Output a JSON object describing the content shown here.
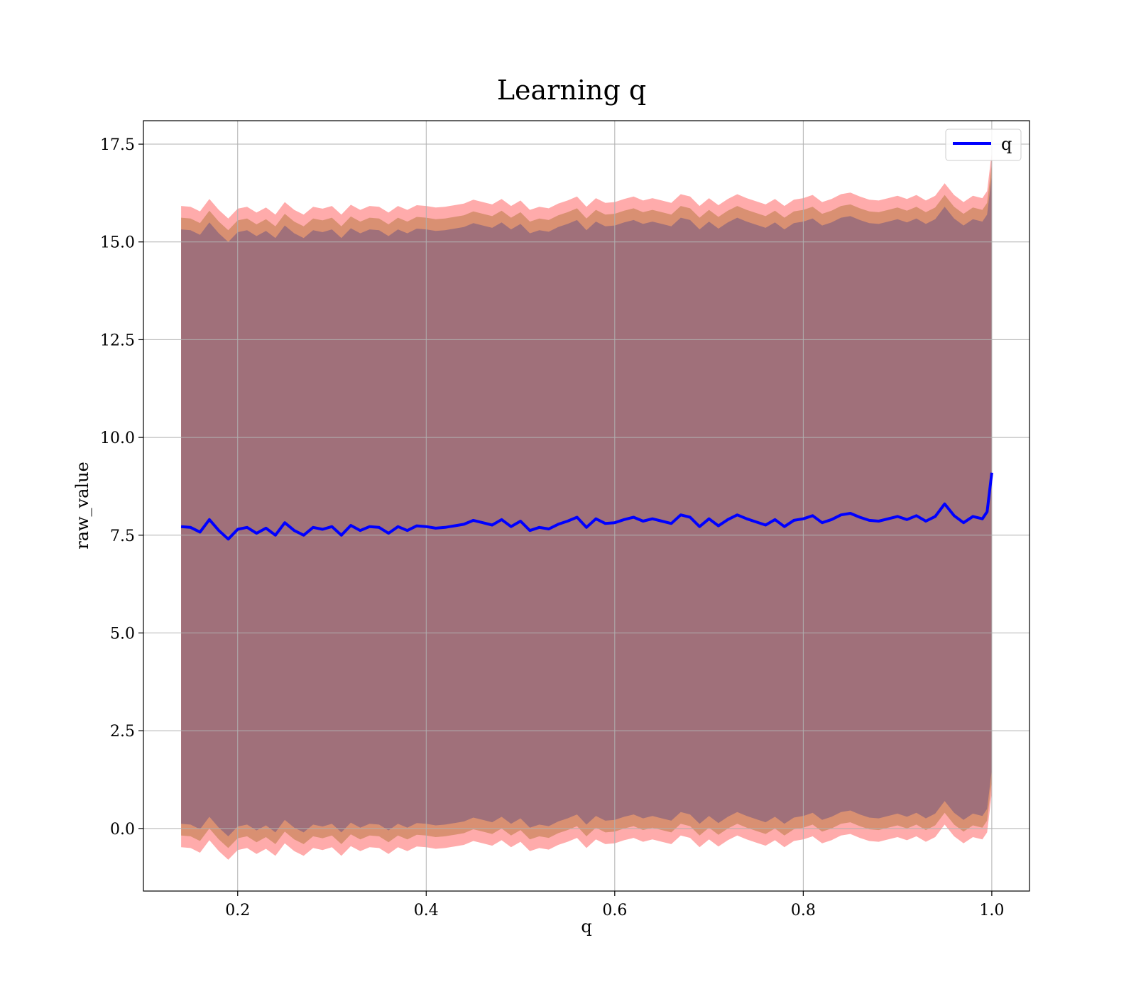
{
  "chart_data": {
    "type": "line",
    "title": "Learning q",
    "xlabel": "q",
    "ylabel": "raw_value",
    "xlim": [
      0.1,
      1.04
    ],
    "ylim": [
      -1.6,
      18.1
    ],
    "xticks": [
      0.2,
      0.4,
      0.6,
      0.8,
      1.0
    ],
    "xtick_labels": [
      "0.2",
      "0.4",
      "0.6",
      "0.8",
      "1.0"
    ],
    "yticks": [
      0.0,
      2.5,
      5.0,
      7.5,
      10.0,
      12.5,
      15.0,
      17.5
    ],
    "ytick_labels": [
      "0.0",
      "2.5",
      "5.0",
      "7.5",
      "10.0",
      "12.5",
      "15.0",
      "17.5"
    ],
    "grid": true,
    "legend": {
      "position": "top-right",
      "entries": [
        "q"
      ]
    },
    "colors": {
      "line": "#0000ff",
      "band_outer": "#ff6666",
      "band_mid": "#c9855a",
      "band_inner": "#a0707a"
    },
    "series": [
      {
        "name": "q",
        "x": [
          0.14,
          0.15,
          0.16,
          0.17,
          0.18,
          0.19,
          0.2,
          0.21,
          0.22,
          0.23,
          0.24,
          0.25,
          0.26,
          0.27,
          0.28,
          0.29,
          0.3,
          0.31,
          0.32,
          0.33,
          0.34,
          0.35,
          0.36,
          0.37,
          0.38,
          0.39,
          0.4,
          0.41,
          0.42,
          0.43,
          0.44,
          0.45,
          0.46,
          0.47,
          0.48,
          0.49,
          0.5,
          0.51,
          0.52,
          0.53,
          0.54,
          0.55,
          0.56,
          0.57,
          0.58,
          0.59,
          0.6,
          0.61,
          0.62,
          0.63,
          0.64,
          0.65,
          0.66,
          0.67,
          0.68,
          0.69,
          0.7,
          0.71,
          0.72,
          0.73,
          0.74,
          0.75,
          0.76,
          0.77,
          0.78,
          0.79,
          0.8,
          0.81,
          0.82,
          0.83,
          0.84,
          0.85,
          0.86,
          0.87,
          0.88,
          0.89,
          0.9,
          0.91,
          0.92,
          0.93,
          0.94,
          0.95,
          0.96,
          0.97,
          0.98,
          0.99,
          0.995,
          1.0
        ],
        "y": [
          7.72,
          7.7,
          7.58,
          7.9,
          7.62,
          7.4,
          7.65,
          7.7,
          7.55,
          7.68,
          7.5,
          7.82,
          7.62,
          7.5,
          7.7,
          7.65,
          7.72,
          7.5,
          7.75,
          7.62,
          7.72,
          7.7,
          7.55,
          7.72,
          7.62,
          7.74,
          7.72,
          7.68,
          7.7,
          7.74,
          7.78,
          7.88,
          7.82,
          7.76,
          7.9,
          7.72,
          7.86,
          7.62,
          7.7,
          7.66,
          7.78,
          7.86,
          7.96,
          7.7,
          7.92,
          7.8,
          7.82,
          7.9,
          7.96,
          7.86,
          7.92,
          7.86,
          7.8,
          8.02,
          7.96,
          7.72,
          7.92,
          7.74,
          7.9,
          8.02,
          7.92,
          7.84,
          7.76,
          7.9,
          7.72,
          7.88,
          7.92,
          8.0,
          7.82,
          7.9,
          8.02,
          8.06,
          7.96,
          7.88,
          7.86,
          7.92,
          7.98,
          7.9,
          8.0,
          7.86,
          7.98,
          8.3,
          8.0,
          7.82,
          7.98,
          7.92,
          8.1,
          9.1
        ]
      }
    ],
    "bands": [
      {
        "name": "outer",
        "offset": 8.2
      },
      {
        "name": "mid",
        "offset": 7.9
      },
      {
        "name": "inner",
        "offset": 7.6
      }
    ]
  }
}
